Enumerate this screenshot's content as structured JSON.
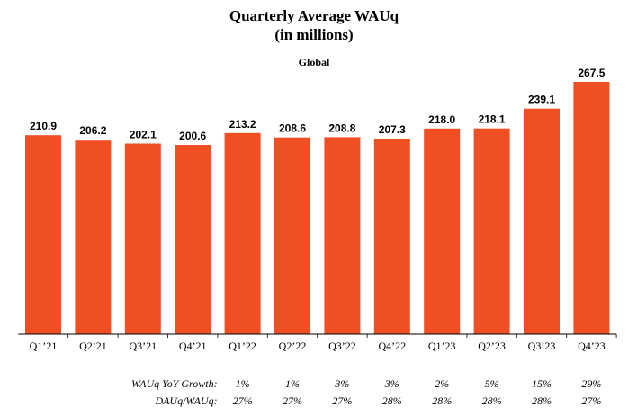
{
  "chart_title": "Quarterly Average WAUq",
  "chart_unit": "(in millions)",
  "region_label": "Global",
  "colors": {
    "bar": "#f04e23",
    "axis": "#000000",
    "text": "#000000"
  },
  "chart_data": {
    "type": "bar",
    "title": "Quarterly Average WAUq",
    "subtitle": "(in millions)",
    "region": "Global",
    "categories": [
      "Q1’21",
      "Q2’21",
      "Q3’21",
      "Q4’21",
      "Q1’22",
      "Q2’22",
      "Q3’22",
      "Q4’22",
      "Q1’23",
      "Q2’23",
      "Q3’23",
      "Q4’23"
    ],
    "values": [
      210.9,
      206.2,
      202.1,
      200.6,
      213.2,
      208.6,
      208.8,
      207.3,
      218.0,
      218.1,
      239.1,
      267.5
    ],
    "value_labels": [
      "210.9",
      "206.2",
      "202.1",
      "200.6",
      "213.2",
      "208.6",
      "208.8",
      "207.3",
      "218.0",
      "218.1",
      "239.1",
      "267.5"
    ],
    "ylim": [
      0,
      267.5
    ],
    "grid": false,
    "legend": "none"
  },
  "metrics": [
    {
      "label": "WAUq YoY Growth:",
      "values": [
        "1%",
        "1%",
        "3%",
        "3%",
        "2%",
        "5%",
        "15%",
        "29%"
      ],
      "start_index": 4
    },
    {
      "label": "DAUq/WAUq:",
      "values": [
        "27%",
        "27%",
        "27%",
        "28%",
        "28%",
        "28%",
        "28%",
        "27%"
      ],
      "start_index": 4
    }
  ]
}
